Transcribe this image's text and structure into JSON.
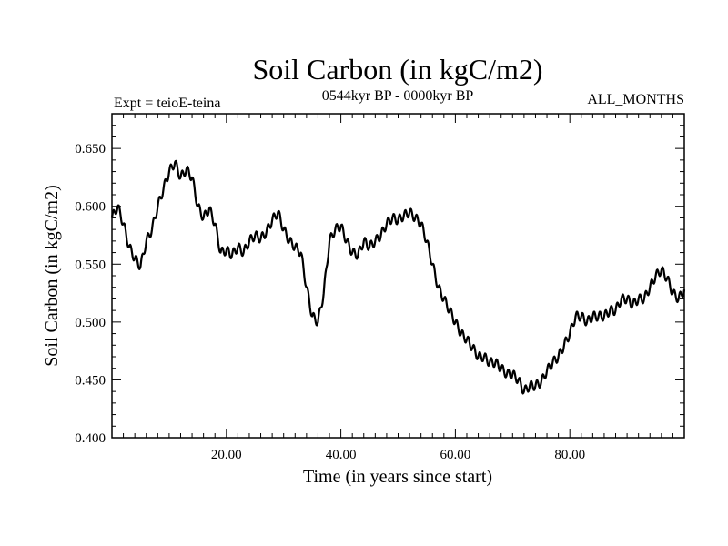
{
  "chart_data": {
    "type": "line",
    "title": "Soil Carbon (in kgC/m2)",
    "subtitle_left": "Expt = teioE-teina",
    "subtitle_center": "0544kyr BP - 0000kyr BP",
    "subtitle_right": "ALL_MONTHS",
    "xlabel": "Time (in years since start)",
    "ylabel": "Soil Carbon (in kgC/m2)",
    "xlim": [
      0,
      100
    ],
    "ylim": [
      0.4,
      0.68
    ],
    "xticks": [
      20,
      40,
      60,
      80
    ],
    "xtick_labels": [
      "20.00",
      "40.00",
      "60.00",
      "80.00"
    ],
    "yticks": [
      0.4,
      0.45,
      0.5,
      0.55,
      0.6,
      0.65
    ],
    "ytick_labels": [
      "0.400",
      "0.450",
      "0.500",
      "0.550",
      "0.600",
      "0.650"
    ],
    "grid": false,
    "series": [
      {
        "name": "Soil Carbon",
        "x": [
          0,
          1,
          2,
          3,
          4,
          5,
          6,
          7,
          8,
          9,
          10,
          11,
          12,
          13,
          14,
          15,
          16,
          17,
          18,
          19,
          20,
          21,
          22,
          23,
          24,
          25,
          26,
          27,
          28,
          29,
          30,
          31,
          32,
          33,
          34,
          35,
          36,
          37,
          38,
          39,
          40,
          41,
          42,
          43,
          44,
          45,
          46,
          47,
          48,
          49,
          50,
          51,
          52,
          53,
          54,
          55,
          56,
          57,
          58,
          59,
          60,
          61,
          62,
          63,
          64,
          65,
          66,
          67,
          68,
          69,
          70,
          71,
          72,
          73,
          74,
          75,
          76,
          77,
          78,
          79,
          80,
          81,
          82,
          83,
          84,
          85,
          86,
          87,
          88,
          89,
          90,
          91,
          92,
          93,
          94,
          95,
          96,
          97,
          98,
          99,
          100
        ],
        "values": [
          0.59,
          0.6,
          0.585,
          0.565,
          0.555,
          0.548,
          0.57,
          0.58,
          0.6,
          0.615,
          0.63,
          0.638,
          0.625,
          0.632,
          0.625,
          0.6,
          0.59,
          0.598,
          0.585,
          0.56,
          0.562,
          0.558,
          0.565,
          0.56,
          0.57,
          0.575,
          0.572,
          0.578,
          0.588,
          0.595,
          0.58,
          0.57,
          0.565,
          0.56,
          0.53,
          0.505,
          0.5,
          0.525,
          0.57,
          0.58,
          0.583,
          0.57,
          0.56,
          0.558,
          0.57,
          0.565,
          0.57,
          0.575,
          0.585,
          0.59,
          0.588,
          0.592,
          0.595,
          0.59,
          0.585,
          0.57,
          0.55,
          0.53,
          0.52,
          0.51,
          0.5,
          0.49,
          0.485,
          0.478,
          0.47,
          0.47,
          0.465,
          0.465,
          0.46,
          0.455,
          0.455,
          0.45,
          0.44,
          0.445,
          0.445,
          0.448,
          0.458,
          0.465,
          0.47,
          0.48,
          0.49,
          0.505,
          0.505,
          0.5,
          0.505,
          0.505,
          0.505,
          0.51,
          0.51,
          0.52,
          0.52,
          0.515,
          0.52,
          0.52,
          0.53,
          0.54,
          0.545,
          0.538,
          0.525,
          0.52,
          0.528
        ]
      }
    ]
  }
}
